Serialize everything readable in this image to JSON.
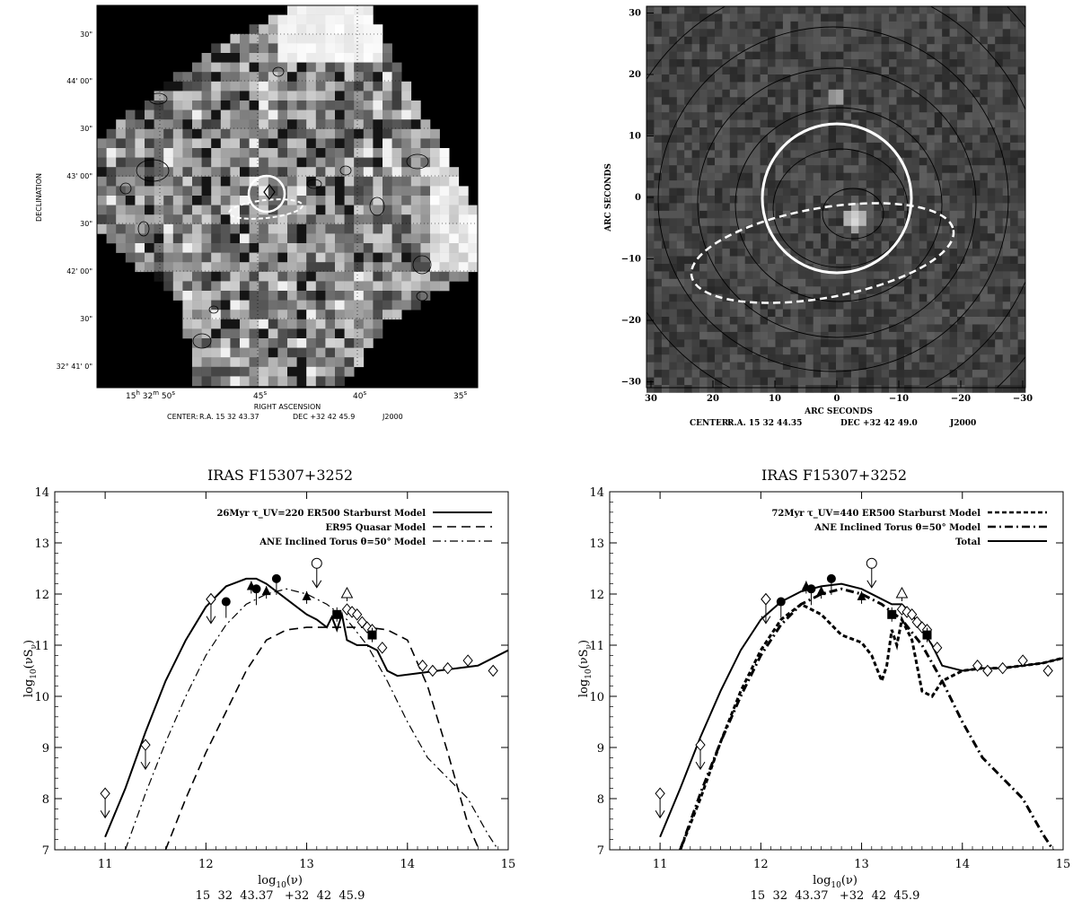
{
  "figure": {
    "map_left": {
      "xlabel": "RIGHT ASCENSION",
      "ylabel": "DECLINATION",
      "center_label": "CENTER:",
      "center_ra": "R.A. 15 32 43.37",
      "center_dec": "DEC +32 42 45.9",
      "epoch": "J2000",
      "ytick_labels": [
        "30\"",
        "44' 00\"",
        "30\"",
        "43' 00\"",
        "30\"",
        "42' 00\"",
        "30\"",
        "32° 41' 0\""
      ],
      "xtick_labels": [
        "15h 32m 50s",
        "45s",
        "40s",
        "35s"
      ]
    },
    "map_right": {
      "xlabel": "ARC SECONDS",
      "ylabel": "ARC SECONDS",
      "center_label": "CENTER:",
      "center_ra": "R.A. 15 32 44.35",
      "center_dec": "DEC +32 42 49.0",
      "epoch": "J2000",
      "xticks": [
        30,
        20,
        10,
        0,
        -10,
        -20,
        -30
      ],
      "yticks": [
        30,
        20,
        10,
        0,
        -10,
        -20,
        -30
      ]
    }
  },
  "chart_data": [
    {
      "type": "line",
      "title": "IRAS F15307+3252",
      "xlabel": "log₁₀(ν)",
      "ylabel": "log₁₀(νS_ν)",
      "footer": "15  32  43.37   +32  42  45.9",
      "xlim": [
        10.5,
        15
      ],
      "ylim": [
        7,
        14
      ],
      "xticks": [
        11,
        12,
        13,
        14,
        15
      ],
      "yticks": [
        7,
        8,
        9,
        10,
        11,
        12,
        13,
        14
      ],
      "legend": [
        {
          "label": "26Myr τ_UV=220 ER500 Starburst Model",
          "style": "solid"
        },
        {
          "label": "ER95 Quasar Model",
          "style": "dashed"
        },
        {
          "label": "ANE Inclined Torus θ=50° Model",
          "style": "dashdot"
        }
      ],
      "series": [
        {
          "x": [
            11.0,
            11.2,
            11.4,
            11.6,
            11.8,
            12.0,
            12.2,
            12.4,
            12.5,
            12.6,
            12.8,
            13.0,
            13.1,
            13.2,
            13.25,
            13.3,
            13.35,
            13.4,
            13.5,
            13.6,
            13.7,
            13.8,
            13.9,
            14.1,
            14.3,
            14.5,
            14.7,
            15.0
          ],
          "y": [
            7.25,
            8.2,
            9.3,
            10.3,
            11.1,
            11.75,
            12.15,
            12.3,
            12.3,
            12.2,
            11.9,
            11.6,
            11.5,
            11.35,
            11.55,
            11.3,
            11.6,
            11.1,
            11.0,
            11.0,
            10.9,
            10.5,
            10.4,
            10.45,
            10.5,
            10.55,
            10.6,
            10.9
          ]
        },
        {
          "x": [
            11.6,
            11.8,
            12.0,
            12.2,
            12.4,
            12.6,
            12.8,
            13.0,
            13.2,
            13.4,
            13.6,
            13.8,
            14.0,
            14.2,
            14.4,
            14.6,
            14.8
          ],
          "y": [
            7.0,
            8.0,
            8.9,
            9.7,
            10.5,
            11.1,
            11.3,
            11.35,
            11.35,
            11.35,
            11.35,
            11.3,
            11.1,
            10.2,
            8.9,
            7.5,
            6.6
          ]
        },
        {
          "x": [
            11.2,
            11.4,
            11.6,
            11.8,
            12.0,
            12.2,
            12.4,
            12.6,
            12.8,
            13.0,
            13.2,
            13.4,
            13.6,
            13.8,
            14.0,
            14.2,
            14.4,
            14.6,
            14.8,
            14.9
          ],
          "y": [
            7.0,
            8.1,
            9.1,
            10.0,
            10.8,
            11.4,
            11.8,
            12.0,
            12.1,
            12.0,
            11.8,
            11.5,
            11.0,
            10.3,
            9.5,
            8.8,
            8.4,
            8.0,
            7.3,
            7.0
          ]
        }
      ],
      "points": {
        "filled_circles": [
          [
            12.2,
            11.85
          ],
          [
            12.5,
            12.1
          ],
          [
            12.7,
            12.3
          ]
        ],
        "filled_triangles": [
          [
            12.45,
            12.15
          ],
          [
            12.6,
            12.05
          ],
          [
            13.0,
            11.95
          ],
          [
            13.4,
            12.0
          ]
        ],
        "filled_squares": [
          [
            13.3,
            11.6
          ],
          [
            13.65,
            11.2
          ]
        ],
        "open_triangles": [
          [
            13.4,
            12.0
          ]
        ],
        "diamonds": [
          [
            12.05,
            11.9
          ],
          [
            13.4,
            11.7
          ],
          [
            13.45,
            11.65
          ],
          [
            13.5,
            11.6
          ],
          [
            13.55,
            11.45
          ],
          [
            13.6,
            11.35
          ],
          [
            13.65,
            11.3
          ],
          [
            13.75,
            10.95
          ],
          [
            14.15,
            10.6
          ],
          [
            14.25,
            10.5
          ],
          [
            14.4,
            10.55
          ],
          [
            14.6,
            10.7
          ],
          [
            14.85,
            10.5
          ]
        ],
        "upper_limits": [
          [
            11.0,
            8.1
          ],
          [
            11.4,
            9.05
          ],
          [
            12.05,
            11.9
          ],
          [
            13.1,
            12.6
          ]
        ]
      }
    },
    {
      "type": "line",
      "title": "IRAS F15307+3252",
      "xlabel": "log₁₀(ν)",
      "ylabel": "log₁₀(νS_ν)",
      "footer": "15  32  43.37   +32  42  45.9",
      "xlim": [
        10.5,
        15
      ],
      "ylim": [
        7,
        14
      ],
      "xticks": [
        11,
        12,
        13,
        14,
        15
      ],
      "yticks": [
        7,
        8,
        9,
        10,
        11,
        12,
        13,
        14
      ],
      "legend": [
        {
          "label": "72Myr τ_UV=440 ER500 Starburst Model",
          "style": "dashed"
        },
        {
          "label": "ANE Inclined Torus θ=50° Model",
          "style": "dashdot"
        },
        {
          "label": "Total",
          "style": "solid"
        }
      ],
      "series": [
        {
          "x": [
            11.2,
            11.4,
            11.6,
            11.8,
            12.0,
            12.2,
            12.4,
            12.6,
            12.8,
            13.0,
            13.1,
            13.2,
            13.25,
            13.3,
            13.35,
            13.4,
            13.5,
            13.6,
            13.7,
            13.8,
            14.0,
            14.2,
            14.4,
            14.6,
            14.8,
            15.0
          ],
          "y": [
            7.0,
            8.0,
            9.1,
            10.1,
            10.9,
            11.5,
            11.8,
            11.6,
            11.2,
            11.05,
            10.8,
            10.3,
            10.6,
            11.3,
            11.0,
            11.5,
            11.1,
            10.1,
            10.0,
            10.3,
            10.5,
            10.55,
            10.55,
            10.6,
            10.65,
            10.75
          ]
        },
        {
          "x": [
            11.2,
            11.4,
            11.6,
            11.8,
            12.0,
            12.2,
            12.4,
            12.6,
            12.8,
            13.0,
            13.2,
            13.4,
            13.6,
            13.8,
            14.0,
            14.2,
            14.4,
            14.6,
            14.8,
            14.9
          ],
          "y": [
            7.0,
            8.1,
            9.1,
            10.0,
            10.8,
            11.4,
            11.8,
            12.0,
            12.1,
            12.0,
            11.8,
            11.5,
            11.0,
            10.3,
            9.5,
            8.8,
            8.4,
            8.0,
            7.3,
            7.0
          ]
        },
        {
          "x": [
            11.0,
            11.2,
            11.4,
            11.6,
            11.8,
            12.0,
            12.2,
            12.4,
            12.6,
            12.8,
            13.0,
            13.2,
            13.3,
            13.4,
            13.5,
            13.6,
            13.7,
            13.8,
            14.0,
            14.2,
            14.4,
            14.6,
            14.8,
            15.0
          ],
          "y": [
            7.25,
            8.2,
            9.2,
            10.1,
            10.9,
            11.5,
            11.85,
            12.05,
            12.15,
            12.2,
            12.1,
            11.9,
            11.8,
            11.8,
            11.6,
            11.3,
            11.0,
            10.6,
            10.5,
            10.55,
            10.55,
            10.6,
            10.65,
            10.75
          ]
        }
      ],
      "points": {
        "filled_circles": [
          [
            12.2,
            11.85
          ],
          [
            12.5,
            12.1
          ],
          [
            12.7,
            12.3
          ]
        ],
        "filled_triangles": [
          [
            12.45,
            12.15
          ],
          [
            12.6,
            12.05
          ],
          [
            13.0,
            11.95
          ],
          [
            13.4,
            12.0
          ]
        ],
        "filled_squares": [
          [
            13.3,
            11.6
          ],
          [
            13.65,
            11.2
          ]
        ],
        "open_triangles": [
          [
            13.4,
            12.0
          ]
        ],
        "diamonds": [
          [
            12.05,
            11.9
          ],
          [
            13.4,
            11.7
          ],
          [
            13.45,
            11.65
          ],
          [
            13.5,
            11.6
          ],
          [
            13.55,
            11.45
          ],
          [
            13.6,
            11.35
          ],
          [
            13.65,
            11.3
          ],
          [
            13.75,
            10.95
          ],
          [
            14.15,
            10.6
          ],
          [
            14.25,
            10.5
          ],
          [
            14.4,
            10.55
          ],
          [
            14.6,
            10.7
          ],
          [
            14.85,
            10.5
          ]
        ],
        "upper_limits": [
          [
            11.0,
            8.1
          ],
          [
            11.4,
            9.05
          ],
          [
            12.05,
            11.9
          ],
          [
            13.1,
            12.6
          ]
        ]
      }
    }
  ]
}
